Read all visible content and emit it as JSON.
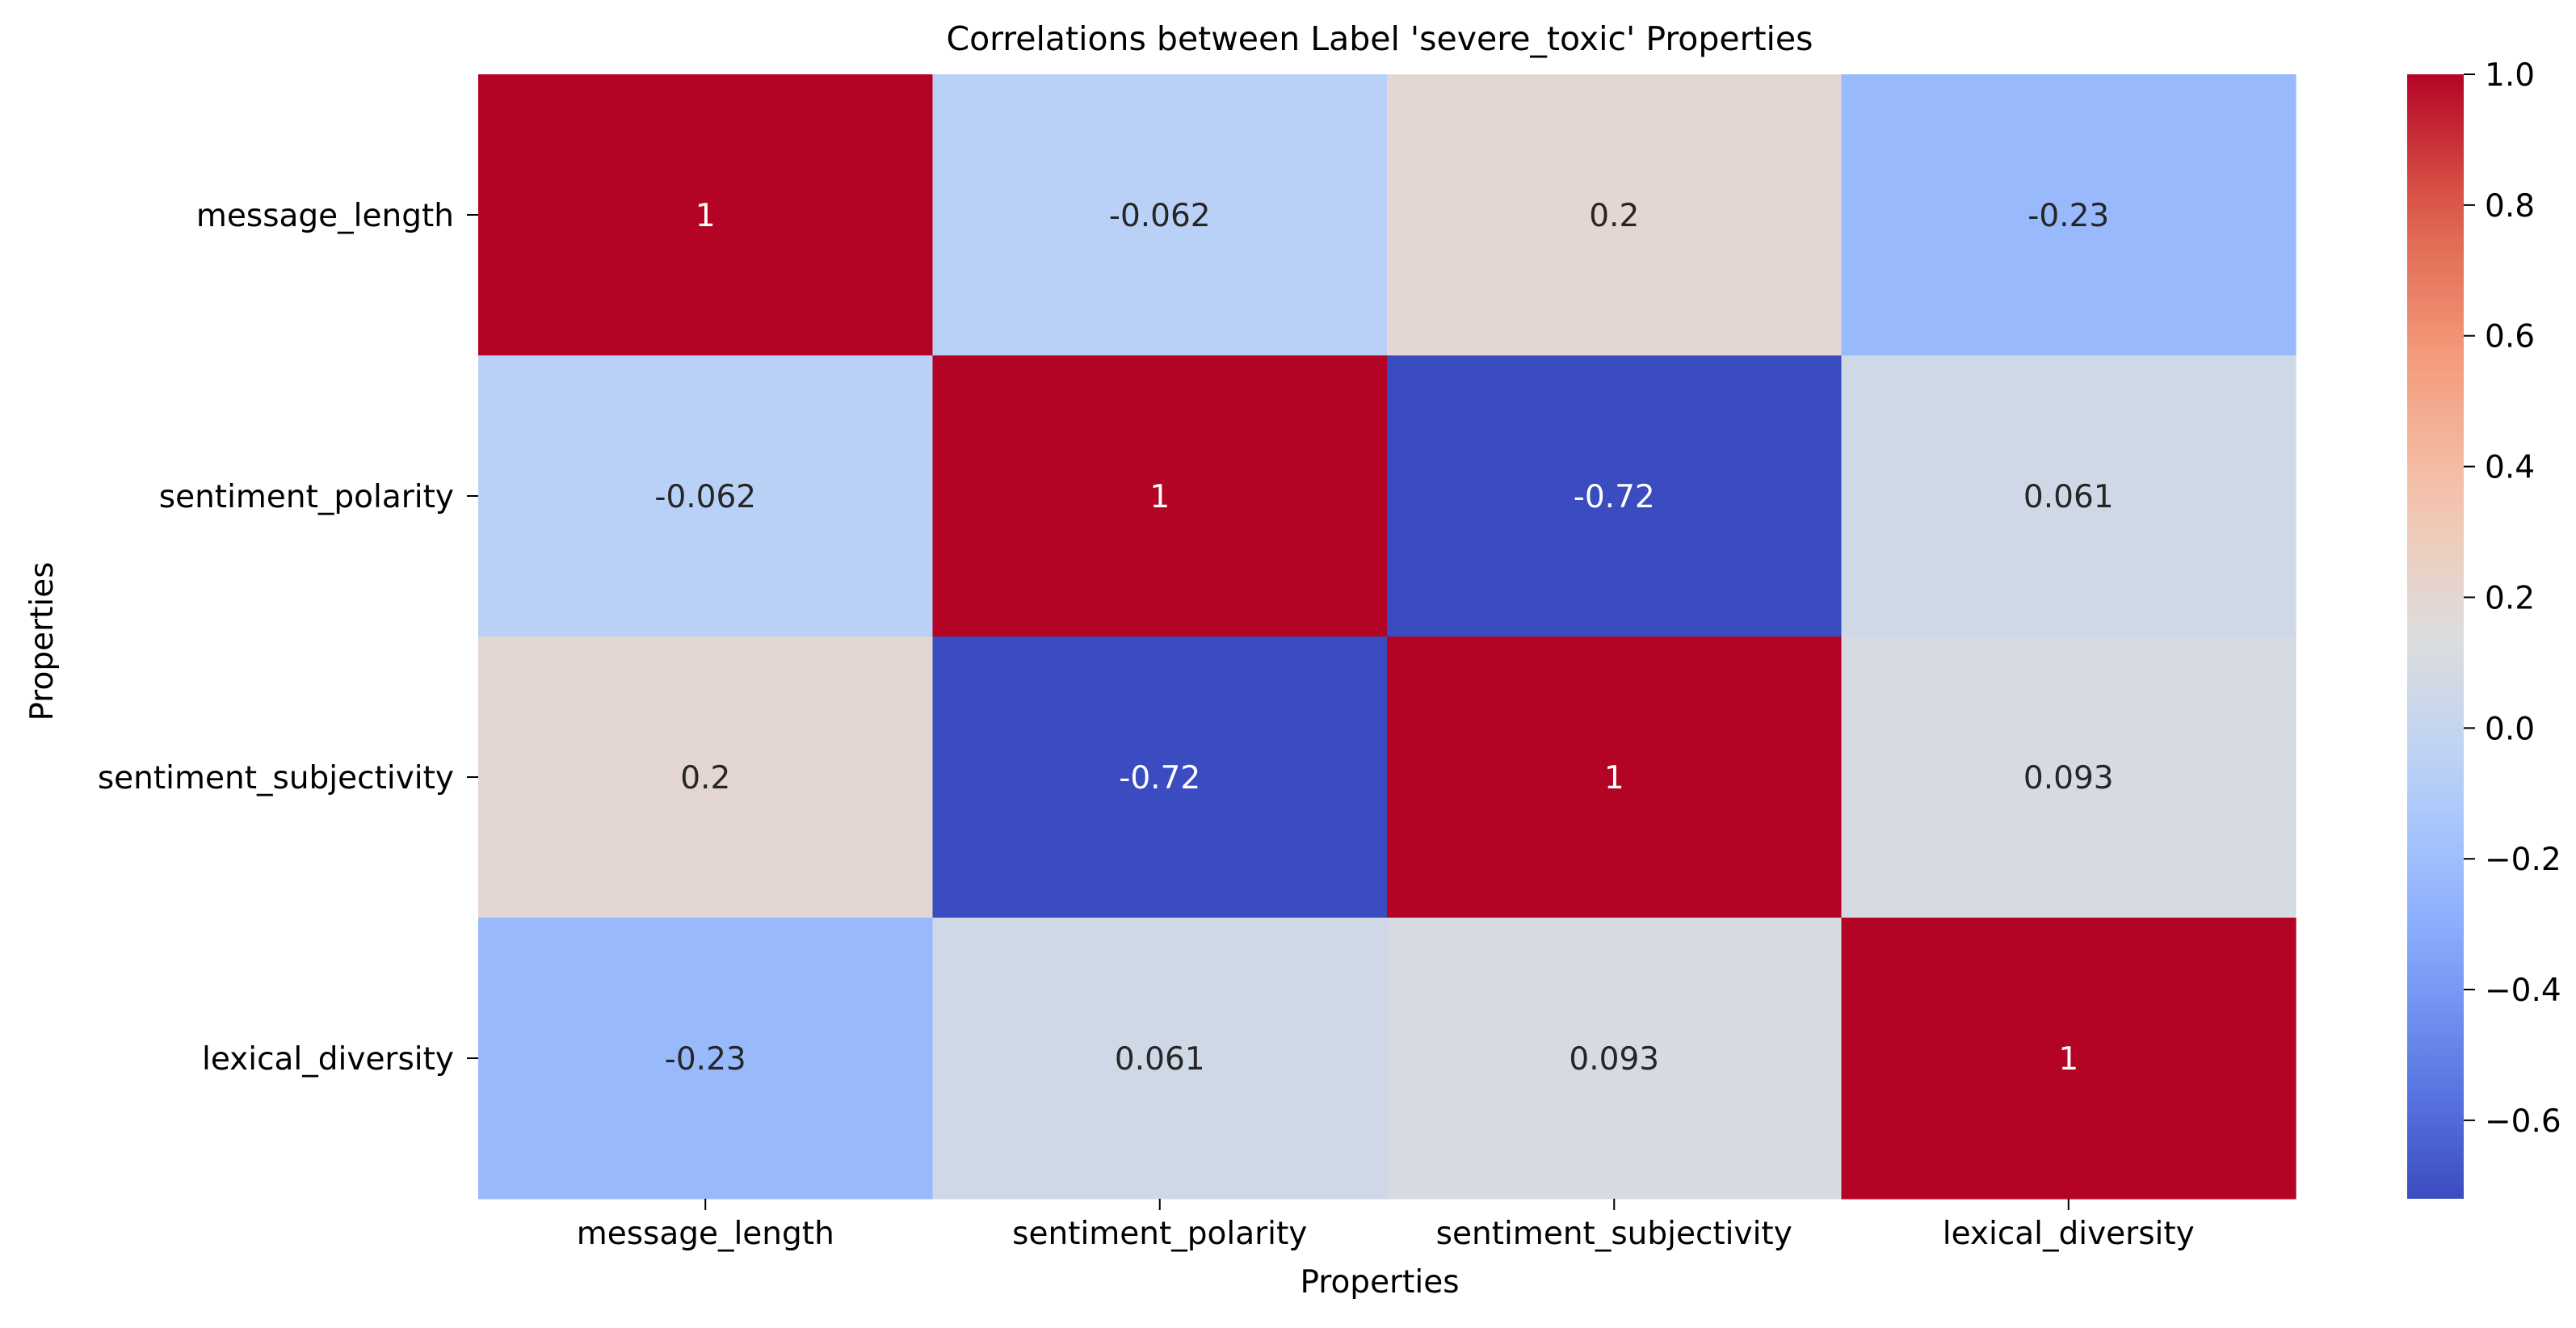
{
  "chart_data": {
    "type": "heatmap",
    "title": "Correlations between Label 'severe_toxic' Properties",
    "xlabel": "Properties",
    "ylabel": "Properties",
    "x_categories": [
      "message_length",
      "sentiment_polarity",
      "sentiment_subjectivity",
      "lexical_diversity"
    ],
    "y_categories": [
      "message_length",
      "sentiment_polarity",
      "sentiment_subjectivity",
      "lexical_diversity"
    ],
    "values": [
      [
        1,
        -0.062,
        0.2,
        -0.23
      ],
      [
        -0.062,
        1,
        -0.72,
        0.061
      ],
      [
        0.2,
        -0.72,
        1,
        0.093
      ],
      [
        -0.23,
        0.061,
        0.093,
        1
      ]
    ],
    "annotations": [
      [
        "1",
        "-0.062",
        "0.2",
        "-0.23"
      ],
      [
        "-0.062",
        "1",
        "-0.72",
        "0.061"
      ],
      [
        "0.2",
        "-0.72",
        "1",
        "0.093"
      ],
      [
        "-0.23",
        "0.061",
        "0.093",
        "1"
      ]
    ],
    "colormap": "coolwarm",
    "colorbar": {
      "vmin": -0.72,
      "vmax": 1.0,
      "ticks": [
        1.0,
        0.8,
        0.6,
        0.4,
        0.2,
        0.0,
        -0.2,
        -0.4,
        -0.6
      ],
      "tick_labels": [
        "1.0",
        "0.8",
        "0.6",
        "0.4",
        "0.2",
        "0.0",
        "−0.2",
        "−0.4",
        "−0.6"
      ]
    }
  }
}
